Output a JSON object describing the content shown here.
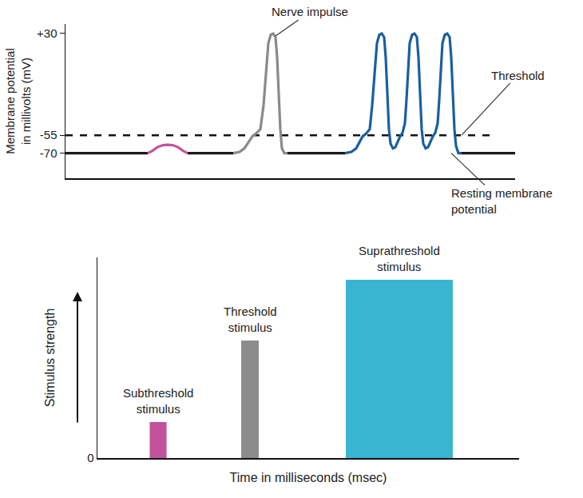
{
  "chart_data": [
    {
      "type": "line",
      "y_label": "Membrane potential\nin millivolts (mV)",
      "xlim": [
        44,
        607
      ],
      "xticks": [],
      "ylim": [
        -91,
        38
      ],
      "yticks": [
        {
          "value": 30,
          "label": "+30"
        },
        -55,
        -70
      ],
      "tick_labels": "y",
      "grid": false,
      "series": [
        {
          "color": "#111111",
          "line_style": "dash",
          "x": [
            44,
            584
          ],
          "values": [
            -55,
            -55
          ]
        },
        {
          "color": "#1a1a1a",
          "line_style": "solid",
          "x": [
            44,
            147
          ],
          "values": [
            -70,
            -70
          ]
        },
        {
          "color": "#c4539d",
          "line_style": "solid",
          "x": [
            147,
            153,
            159,
            166,
            172,
            178,
            185,
            191,
            197
          ],
          "values": [
            -70,
            -68,
            -65,
            -63.3,
            -63,
            -63.3,
            -65,
            -68,
            -70
          ]
        },
        {
          "color": "#1a1a1a",
          "line_style": "solid",
          "x": [
            197,
            254
          ],
          "values": [
            -70,
            -70
          ]
        },
        {
          "color": "#8a8a8a",
          "line_style": "solid",
          "x": [
            254,
            262,
            268,
            274,
            278,
            282,
            288,
            292,
            295,
            298,
            301,
            304,
            307,
            309,
            311,
            313,
            315,
            318,
            322
          ],
          "values": [
            -70,
            -69,
            -66,
            -60,
            -56,
            -54,
            -50,
            -30,
            0,
            22,
            29,
            30,
            27,
            10,
            -20,
            -50,
            -66,
            -70,
            -70
          ]
        },
        {
          "color": "#1a1a1a",
          "line_style": "solid",
          "x": [
            322,
            394
          ],
          "values": [
            -70,
            -70
          ]
        },
        {
          "color": "#1b5f9e",
          "line_style": "solid",
          "x": [
            394,
            402,
            408,
            413,
            416,
            420,
            425,
            428,
            431,
            434,
            437,
            440,
            443,
            445,
            447,
            449,
            451,
            454,
            457,
            460,
            463,
            466,
            469,
            471,
            473,
            475,
            478,
            481,
            484,
            486,
            488,
            490,
            492,
            495,
            498,
            501,
            504,
            507,
            510,
            512,
            514,
            516,
            519,
            522,
            525,
            527,
            529,
            531,
            533,
            536,
            540
          ],
          "values": [
            -70,
            -69,
            -66,
            -60,
            -56,
            -54,
            -50,
            -30,
            0,
            22,
            29,
            30,
            27,
            10,
            -20,
            -50,
            -62,
            -66,
            -65,
            -60,
            -56,
            -53,
            -45,
            -25,
            0,
            22,
            29,
            30,
            27,
            10,
            -20,
            -50,
            -62,
            -66,
            -65,
            -60,
            -56,
            -53,
            -45,
            -25,
            0,
            22,
            29,
            30,
            27,
            10,
            -20,
            -50,
            -64,
            -70,
            -70
          ]
        },
        {
          "color": "#1a1a1a",
          "line_style": "solid",
          "x": [
            540,
            607
          ],
          "values": [
            -70,
            -70
          ]
        }
      ],
      "annotations": [
        {
          "text": "Nerve impulse",
          "x": 307,
          "y": 28
        },
        {
          "text": "Threshold",
          "x": 540,
          "y": -55
        },
        {
          "text": "Resting membrane\npotential",
          "x": 527,
          "y": -70
        }
      ]
    },
    {
      "type": "bar",
      "x_label": "Time in milliseconds (msec)",
      "y_label": "Stimulus strength",
      "x": [
        160,
        275,
        462
      ],
      "widths": [
        21,
        22,
        134
      ],
      "values": [
        45,
        147,
        223
      ],
      "bar_labels": [
        "Subthreshold\nstimulus",
        "Threshold\nstimulus",
        "Suprathreshold\nstimulus"
      ],
      "colors": [
        "#c2529c",
        "#8c8c8c",
        "#3ab5cf"
      ],
      "xlim": [
        84,
        612
      ],
      "xticks": [],
      "ylim": [
        0,
        251
      ],
      "yticks": [
        0
      ],
      "tick_labels": "y",
      "grid": false
    }
  ]
}
